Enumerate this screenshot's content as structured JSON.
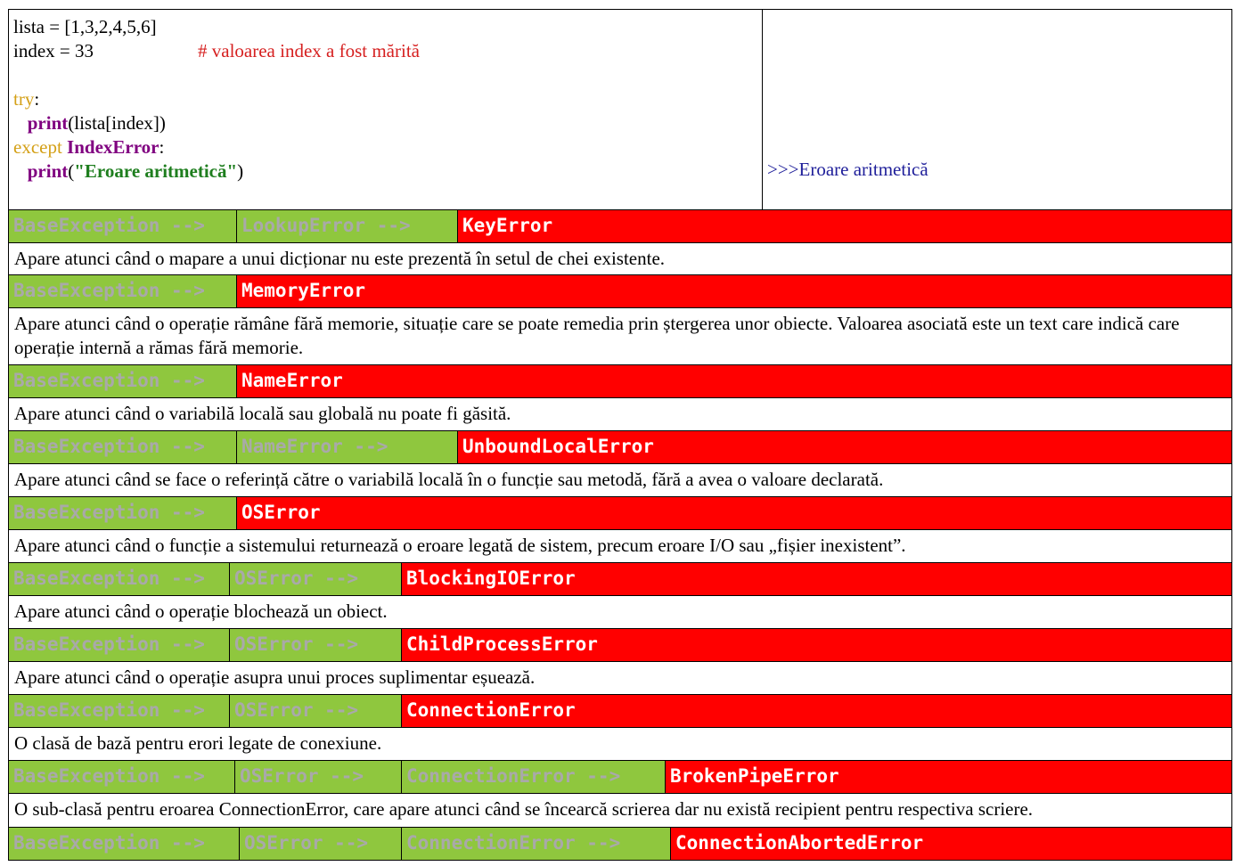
{
  "code": {
    "line1": "lista = [1,3,2,4,5,6]",
    "line2_code": "index = 33",
    "line2_comment": "# valoarea index a fost mărită",
    "try_kw": "try",
    "colon": ":",
    "print_kw": "print",
    "print1_args": "(lista[index])",
    "except_kw": "except",
    "exc_name": "IndexError",
    "print2_open": "(",
    "print2_str": "\"Eroare aritmetică\"",
    "print2_close": ")"
  },
  "output": {
    "prompt": ">>>",
    "text": "Eroare aritmetică"
  },
  "entries": [
    {
      "parents": [
        "BaseException -->",
        "LookupError -->"
      ],
      "name": "KeyError",
      "description": "Apare atunci când o mapare a unui dicționar nu este prezentă în setul de chei existente."
    },
    {
      "parents": [
        "BaseException -->"
      ],
      "name": "MemoryError",
      "description": "Apare atunci când o operație rămâne fără memorie, situație care se poate remedia prin ștergerea unor obiecte. Valoarea asociată este un text care indică care operație internă a rămas fără memorie."
    },
    {
      "parents": [
        "BaseException -->"
      ],
      "name": "NameError",
      "description": "Apare atunci când o variabilă locală sau globală nu poate fi găsită."
    },
    {
      "parents": [
        "BaseException -->",
        "NameError -->"
      ],
      "name": "UnboundLocalError",
      "description": "Apare atunci când se face o referință către o variabilă locală în o funcție sau metodă, fără a avea o valoare declarată."
    },
    {
      "parents": [
        "BaseException -->"
      ],
      "name": "OSError",
      "description": "Apare atunci când o funcție a sistemului returnează o eroare legată de sistem, precum eroare I/O sau „fișier inexistent”."
    },
    {
      "parents": [
        "BaseException -->",
        "OSError -->"
      ],
      "name": "BlockingIOError",
      "description": "Apare atunci când o operație blochează un obiect."
    },
    {
      "parents": [
        "BaseException -->",
        "OSError -->"
      ],
      "name": "ChildProcessError",
      "description": "Apare atunci când o operație asupra unui proces suplimentar eșuează."
    },
    {
      "parents": [
        "BaseException -->",
        "OSError -->"
      ],
      "name": "ConnectionError",
      "description": "O clasă de bază pentru erori legate de conexiune."
    },
    {
      "parents": [
        "BaseException -->",
        "OSError -->",
        "ConnectionError -->"
      ],
      "name": "BrokenPipeError",
      "description": "O sub-clasă pentru eroarea ConnectionError, care apare atunci când se încearcă scrierea dar nu există recipient pentru respectiva scriere."
    },
    {
      "parents": [
        "BaseException -->",
        "OSError -->",
        "ConnectionError -->"
      ],
      "name": "ConnectionAbortedError",
      "description": ""
    }
  ],
  "colors": {
    "parent_bg": "#8fc73e",
    "parent_text": "#a9a9a9",
    "leaf_bg": "#ff0000",
    "leaf_text": "#ffffff",
    "comment": "#d62020",
    "keyword_try": "#d4a017",
    "keyword_print": "#800080",
    "string": "#1e7e1e",
    "output_text": "#1f1f9a"
  }
}
